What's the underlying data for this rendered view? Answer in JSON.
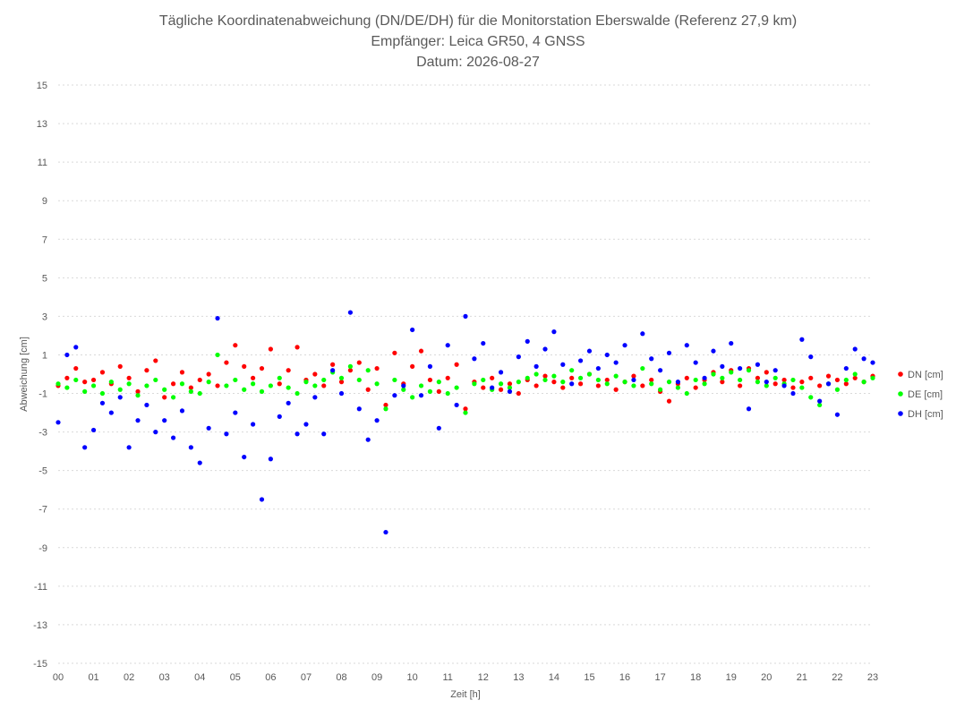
{
  "chart_data": {
    "type": "scatter",
    "title_lines": [
      "Tägliche Koordinatenabweichung (DN/DE/DH) für die Monitorstation Eberswalde (Referenz 27,9 km)",
      "Empfänger: Leica GR50, 4 GNSS",
      "Datum: 2026-08-27"
    ],
    "xlabel": "Zeit [h]",
    "ylabel": "Abweichung [cm]",
    "x_tick_labels": [
      "00",
      "01",
      "02",
      "03",
      "04",
      "05",
      "06",
      "07",
      "08",
      "09",
      "10",
      "11",
      "12",
      "13",
      "14",
      "15",
      "16",
      "17",
      "18",
      "19",
      "20",
      "21",
      "22",
      "23"
    ],
    "y_tick_labels": [
      "15",
      "13",
      "11",
      "9",
      "7",
      "5",
      "3",
      "1",
      "-1",
      "-3",
      "-5",
      "-7",
      "-9",
      "-11",
      "-13",
      "-15"
    ],
    "xlim": [
      0,
      23
    ],
    "ylim": [
      -15,
      15
    ],
    "grid": true,
    "legend_position": "right",
    "series": [
      {
        "name": "DN [cm]",
        "color": "#ff0000",
        "x": [
          0.0,
          0.25,
          0.5,
          0.75,
          1.0,
          1.25,
          1.5,
          1.75,
          2.0,
          2.25,
          2.5,
          2.75,
          3.0,
          3.25,
          3.5,
          3.75,
          4.0,
          4.25,
          4.5,
          4.75,
          5.0,
          5.25,
          5.5,
          5.75,
          6.0,
          6.25,
          6.5,
          6.75,
          7.0,
          7.25,
          7.5,
          7.75,
          8.0,
          8.25,
          8.5,
          8.75,
          9.0,
          9.25,
          9.5,
          9.75,
          10.0,
          10.25,
          10.5,
          10.75,
          11.0,
          11.25,
          11.5,
          11.75,
          12.0,
          12.25,
          12.5,
          12.75,
          13.0,
          13.25,
          13.5,
          13.75,
          14.0,
          14.25,
          14.5,
          14.75,
          15.0,
          15.25,
          15.5,
          15.75,
          16.0,
          16.25,
          16.5,
          16.75,
          17.0,
          17.25,
          17.5,
          17.75,
          18.0,
          18.25,
          18.5,
          18.75,
          19.0,
          19.25,
          19.5,
          19.75,
          20.0,
          20.25,
          20.5,
          20.75,
          21.0,
          21.25,
          21.5,
          21.75,
          22.0,
          22.25,
          22.5,
          22.75,
          23.0
        ],
        "y": [
          -0.6,
          -0.2,
          0.3,
          -0.4,
          -0.3,
          0.1,
          -0.5,
          0.4,
          -0.2,
          -0.9,
          0.2,
          0.7,
          -1.2,
          -0.5,
          0.1,
          -0.7,
          -0.3,
          0.0,
          -0.6,
          0.6,
          1.5,
          0.4,
          -0.2,
          0.3,
          1.3,
          -0.5,
          0.2,
          1.4,
          -0.3,
          0.0,
          -0.6,
          0.5,
          -0.4,
          0.2,
          0.6,
          -0.8,
          0.3,
          -1.6,
          1.1,
          -0.5,
          0.4,
          1.2,
          -0.3,
          -0.9,
          -0.2,
          0.5,
          -1.8,
          -0.4,
          -0.7,
          -0.2,
          -0.8,
          -0.5,
          -1.0,
          -0.3,
          -0.6,
          -0.1,
          -0.4,
          -0.7,
          -0.2,
          -0.5,
          0.0,
          -0.6,
          -0.3,
          -0.8,
          -0.4,
          -0.1,
          -0.6,
          -0.3,
          -0.9,
          -1.4,
          -0.5,
          -0.2,
          -0.7,
          -0.3,
          0.1,
          -0.4,
          0.2,
          -0.6,
          0.3,
          -0.2,
          0.1,
          -0.5,
          -0.3,
          -0.7,
          -0.4,
          -0.2,
          -0.6,
          -0.1,
          -0.3,
          -0.5,
          -0.2,
          -0.4,
          -0.1
        ]
      },
      {
        "name": "DE [cm]",
        "color": "#00ff00",
        "x": [
          0.0,
          0.25,
          0.5,
          0.75,
          1.0,
          1.25,
          1.5,
          1.75,
          2.0,
          2.25,
          2.5,
          2.75,
          3.0,
          3.25,
          3.5,
          3.75,
          4.0,
          4.25,
          4.5,
          4.75,
          5.0,
          5.25,
          5.5,
          5.75,
          6.0,
          6.25,
          6.5,
          6.75,
          7.0,
          7.25,
          7.5,
          7.75,
          8.0,
          8.25,
          8.5,
          8.75,
          9.0,
          9.25,
          9.5,
          9.75,
          10.0,
          10.25,
          10.5,
          10.75,
          11.0,
          11.25,
          11.5,
          11.75,
          12.0,
          12.25,
          12.5,
          12.75,
          13.0,
          13.25,
          13.5,
          13.75,
          14.0,
          14.25,
          14.5,
          14.75,
          15.0,
          15.25,
          15.5,
          15.75,
          16.0,
          16.25,
          16.5,
          16.75,
          17.0,
          17.25,
          17.5,
          17.75,
          18.0,
          18.25,
          18.5,
          18.75,
          19.0,
          19.25,
          19.5,
          19.75,
          20.0,
          20.25,
          20.5,
          20.75,
          21.0,
          21.25,
          21.5,
          21.75,
          22.0,
          22.25,
          22.5,
          22.75,
          23.0
        ],
        "y": [
          -0.5,
          -0.7,
          -0.3,
          -0.9,
          -0.6,
          -1.0,
          -0.4,
          -0.8,
          -0.5,
          -1.1,
          -0.6,
          -0.3,
          -0.8,
          -1.2,
          -0.5,
          -0.9,
          -1.0,
          -0.4,
          1.0,
          -0.6,
          -0.3,
          -0.8,
          -0.5,
          -0.9,
          -0.6,
          -0.2,
          -0.7,
          -1.0,
          -0.4,
          -0.6,
          -0.3,
          0.1,
          -0.2,
          0.4,
          -0.3,
          0.2,
          -0.5,
          -1.8,
          -0.3,
          -0.8,
          -1.2,
          -0.6,
          -0.9,
          -0.4,
          -1.0,
          -0.7,
          -2.0,
          -0.5,
          -0.3,
          -0.8,
          -0.5,
          -0.7,
          -0.4,
          -0.2,
          0.0,
          -0.3,
          -0.1,
          -0.4,
          0.2,
          -0.2,
          0.0,
          -0.3,
          -0.5,
          -0.1,
          -0.4,
          -0.6,
          0.3,
          -0.5,
          -0.8,
          -0.4,
          -0.7,
          -1.0,
          -0.3,
          -0.5,
          0.0,
          -0.2,
          0.1,
          -0.3,
          0.2,
          -0.4,
          -0.6,
          -0.2,
          -0.5,
          -0.3,
          -0.7,
          -1.2,
          -1.6,
          -0.5,
          -0.8,
          -0.3,
          0.0,
          -0.4,
          -0.2
        ]
      },
      {
        "name": "DH [cm]",
        "color": "#0000ff",
        "x": [
          0.0,
          0.25,
          0.5,
          0.75,
          1.0,
          1.25,
          1.5,
          1.75,
          2.0,
          2.25,
          2.5,
          2.75,
          3.0,
          3.25,
          3.5,
          3.75,
          4.0,
          4.25,
          4.5,
          4.75,
          5.0,
          5.25,
          5.5,
          5.75,
          6.0,
          6.25,
          6.5,
          6.75,
          7.0,
          7.25,
          7.5,
          7.75,
          8.0,
          8.25,
          8.5,
          8.75,
          9.0,
          9.25,
          9.5,
          9.75,
          10.0,
          10.25,
          10.5,
          10.75,
          11.0,
          11.25,
          11.5,
          11.75,
          12.0,
          12.25,
          12.5,
          12.75,
          13.0,
          13.25,
          13.5,
          13.75,
          14.0,
          14.25,
          14.5,
          14.75,
          15.0,
          15.25,
          15.5,
          15.75,
          16.0,
          16.25,
          16.5,
          16.75,
          17.0,
          17.25,
          17.5,
          17.75,
          18.0,
          18.25,
          18.5,
          18.75,
          19.0,
          19.25,
          19.5,
          19.75,
          20.0,
          20.25,
          20.5,
          20.75,
          21.0,
          21.25,
          21.5,
          21.75,
          22.0,
          22.25,
          22.5,
          22.75,
          23.0
        ],
        "y": [
          -2.5,
          1.0,
          1.4,
          -3.8,
          -2.9,
          -1.5,
          -2.0,
          -1.2,
          -3.8,
          -2.4,
          -1.6,
          -3.0,
          -2.4,
          -3.3,
          -1.9,
          -3.8,
          -4.6,
          -2.8,
          2.9,
          -3.1,
          -2.0,
          -4.3,
          -2.6,
          -6.5,
          -4.4,
          -2.2,
          -1.5,
          -3.1,
          -2.6,
          -1.2,
          -3.1,
          0.2,
          -1.0,
          3.2,
          -1.8,
          -3.4,
          -2.4,
          -8.2,
          -1.1,
          -0.6,
          2.3,
          -1.1,
          0.4,
          -2.8,
          1.5,
          -1.6,
          3.0,
          0.8,
          1.6,
          -0.7,
          0.1,
          -0.9,
          0.9,
          1.7,
          0.4,
          1.3,
          2.2,
          0.5,
          -0.5,
          0.7,
          1.2,
          0.3,
          1.0,
          0.6,
          1.5,
          -0.3,
          2.1,
          0.8,
          0.2,
          1.1,
          -0.4,
          1.5,
          0.6,
          -0.2,
          1.2,
          0.4,
          1.6,
          0.3,
          -1.8,
          0.5,
          -0.4,
          0.2,
          -0.6,
          -1.0,
          1.8,
          0.9,
          -1.4,
          -0.5,
          -2.1,
          0.3,
          1.3,
          0.8,
          0.6
        ]
      }
    ]
  }
}
